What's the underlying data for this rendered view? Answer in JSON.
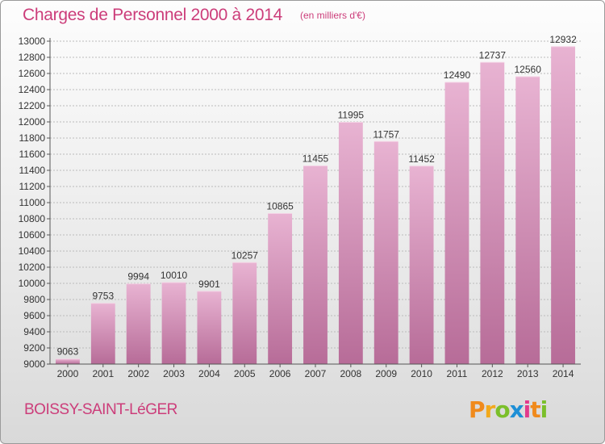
{
  "header": {
    "title": "Charges de Personnel 2000 à 2014",
    "subtitle": "(en milliers d'€)"
  },
  "footer": {
    "commune": "BOISSY-SAINT-LéGER",
    "logo_letters": [
      "P",
      "r",
      "o",
      "x",
      "i",
      "t",
      "i"
    ],
    "logo_colors": [
      "#f08a1c",
      "#f2a91c",
      "#7bbf2a",
      "#1e8fd6",
      "#e23a8c",
      "#f08a1c",
      "#7bbf2a"
    ]
  },
  "colors": {
    "bar_light": "#e8b3d2",
    "bar_dark": "#b76c98",
    "axis": "#555555",
    "grid": "#bbbbbb"
  },
  "chart_data": {
    "type": "bar",
    "categories": [
      "2000",
      "2001",
      "2002",
      "2003",
      "2004",
      "2005",
      "2006",
      "2007",
      "2008",
      "2009",
      "2010",
      "2011",
      "2012",
      "2013",
      "2014"
    ],
    "values": [
      9063,
      9753,
      9994,
      10010,
      9901,
      10257,
      10865,
      11455,
      11995,
      11757,
      11452,
      12490,
      12737,
      12560,
      12932
    ],
    "yticks": [
      9000,
      9200,
      9400,
      9600,
      9800,
      10000,
      10200,
      10400,
      10600,
      10800,
      11000,
      11200,
      11400,
      11600,
      11800,
      12000,
      12200,
      12400,
      12600,
      12800,
      13000
    ],
    "ylim": [
      9000,
      13000
    ],
    "grid": true,
    "data_labels": true
  }
}
